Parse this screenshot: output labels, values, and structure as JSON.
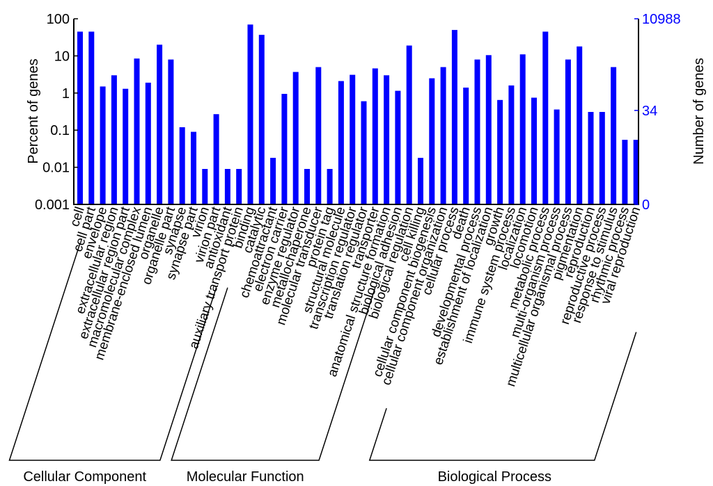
{
  "chart_data": {
    "type": "bar",
    "y_scale": "log",
    "left_axis": {
      "label": "Percent of genes",
      "ylim": [
        0.001,
        100
      ],
      "ticks": [
        "100",
        "10",
        "1",
        "0.1",
        "0.01",
        "0.001"
      ]
    },
    "right_axis": {
      "label": "Number of genes",
      "ticks": [
        "10988",
        "34",
        "0"
      ],
      "color": "#0000ff"
    },
    "bar_color": "#0000ff",
    "grid": false,
    "categories": [
      "cell",
      "cell part",
      "envelope",
      "extracellular region",
      "extracellular region part",
      "macromolecular complex",
      "membrane-enclosed lumen",
      "organelle",
      "organelle part",
      "synapse",
      "synapse part",
      "virion",
      "virion part",
      "antioxidant",
      "auxiliary transport protein",
      "binding",
      "catalytic",
      "chemoattractant",
      "electron carrier",
      "enzyme regulator",
      "metallochaperone",
      "molecular transducer",
      "protein tag",
      "structural molecule",
      "transcription regulator",
      "translation regulator",
      "transporter",
      "anatomical structure formation",
      "biological adhesion",
      "biological regulation",
      "cell killing",
      "cellular component biogenesis",
      "cellular component organization",
      "cellular process",
      "death",
      "developmental process",
      "establishment of localization",
      "growth",
      "immune system process",
      "localization",
      "locomotion",
      "metabolic process",
      "multi-organism process",
      "multicellular organismal process",
      "pigmentation",
      "reproduction",
      "reproductive process",
      "response to stimulus",
      "rhythmic process",
      "viral reproduction"
    ],
    "values": [
      45,
      45,
      1.5,
      3,
      1.3,
      8.5,
      1.9,
      20,
      8,
      0.12,
      0.09,
      0.009,
      0.27,
      0.009,
      0.009,
      70,
      37,
      0.018,
      0.95,
      3.7,
      0.009,
      5,
      0.009,
      2.1,
      3.1,
      0.6,
      4.6,
      3,
      1.15,
      19,
      0.018,
      2.5,
      5,
      50,
      1.4,
      8,
      10.5,
      0.65,
      1.6,
      11,
      0.75,
      45,
      0.36,
      8,
      18,
      0.31,
      0.31,
      5,
      0.055,
      0.055
    ],
    "groups": [
      {
        "name": "Cellular Component",
        "start": 0,
        "end": 12
      },
      {
        "name": "Molecular Function",
        "start": 13,
        "end": 26
      },
      {
        "name": "Biological Process",
        "start": 27,
        "end": 49
      }
    ]
  }
}
